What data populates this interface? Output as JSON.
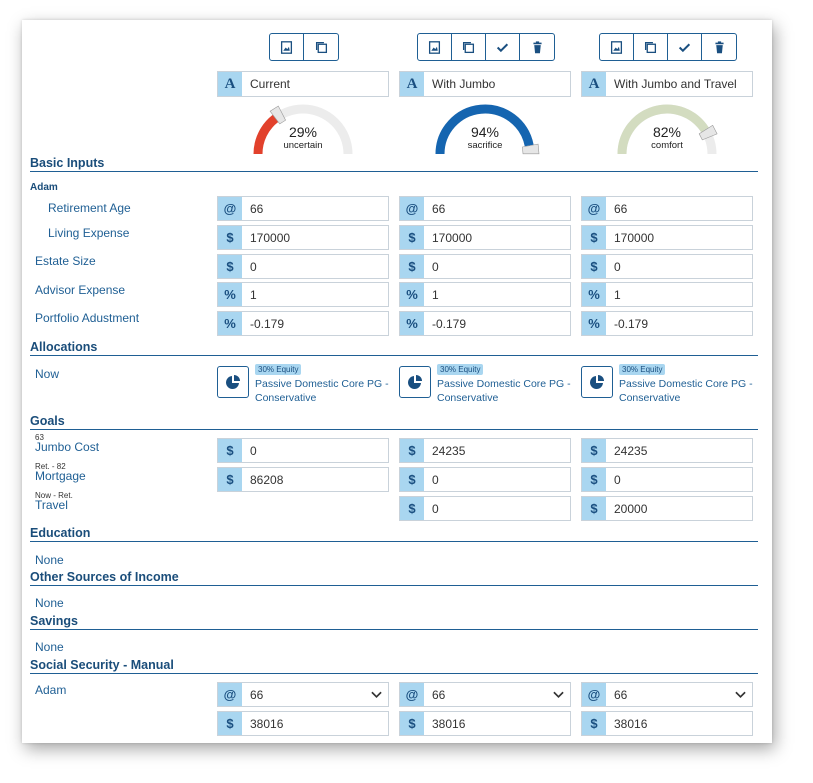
{
  "scenarios": [
    {
      "name": "Current",
      "gauge": {
        "percent": "29%",
        "fraction": 0.29,
        "label": "uncertain",
        "color": "#e2412c"
      },
      "toolbar": [
        "image-icon",
        "copy-icon"
      ]
    },
    {
      "name": "With Jumbo",
      "gauge": {
        "percent": "94%",
        "fraction": 0.94,
        "label": "sacrifice",
        "color": "#1565b0"
      },
      "toolbar": [
        "image-icon",
        "copy-icon",
        "check-icon",
        "trash-icon"
      ]
    },
    {
      "name": "With Jumbo and Travel",
      "gauge": {
        "percent": "82%",
        "fraction": 0.82,
        "label": "comfort",
        "color": "#d3dcc0"
      },
      "toolbar": [
        "image-icon",
        "copy-icon",
        "check-icon",
        "trash-icon"
      ]
    }
  ],
  "name_addon": "A",
  "sections": {
    "basic_inputs": "Basic Inputs",
    "allocations": "Allocations",
    "goals": "Goals",
    "education": "Education",
    "other_income": "Other Sources of Income",
    "savings": "Savings",
    "social_security": "Social Security - Manual"
  },
  "basic_inputs": {
    "person": "Adam",
    "rows": [
      {
        "label": "Retirement Age",
        "addon": "@",
        "values": [
          "66",
          "66",
          "66"
        ]
      },
      {
        "label": "Living Expense",
        "addon": "$",
        "values": [
          "170000",
          "170000",
          "170000"
        ]
      },
      {
        "label": "Estate Size",
        "addon": "$",
        "values": [
          "0",
          "0",
          "0"
        ]
      },
      {
        "label": "Advisor Expense",
        "addon": "%",
        "values": [
          "1",
          "1",
          "1"
        ]
      },
      {
        "label": "Portfolio Adustment",
        "addon": "%",
        "values": [
          "-0.179",
          "-0.179",
          "-0.179"
        ]
      }
    ]
  },
  "allocations": {
    "label": "Now",
    "items": [
      {
        "badge": "30% Equity",
        "name": "Passive Domestic Core PG - Conservative"
      },
      {
        "badge": "30% Equity",
        "name": "Passive Domestic Core PG - Conservative"
      },
      {
        "badge": "30% Equity",
        "name": "Passive Domestic Core PG - Conservative"
      }
    ]
  },
  "goals": [
    {
      "sublabel": "63",
      "label": "Jumbo Cost",
      "addon": "$",
      "values": [
        "0",
        "24235",
        "24235"
      ]
    },
    {
      "sublabel": "Ret. - 82",
      "label": "Mortgage",
      "addon": "$",
      "values": [
        "86208",
        "0",
        "0"
      ]
    },
    {
      "sublabel": "Now - Ret.",
      "label": "Travel",
      "addon": "$",
      "values": [
        null,
        "0",
        "20000"
      ]
    }
  ],
  "education_text": "None",
  "other_income_text": "None",
  "savings_text": "None",
  "social_security": {
    "person": "Adam",
    "age_addon": "@",
    "ages": [
      "66",
      "66",
      "66"
    ],
    "amount_addon": "$",
    "amounts": [
      "38016",
      "38016",
      "38016"
    ]
  }
}
